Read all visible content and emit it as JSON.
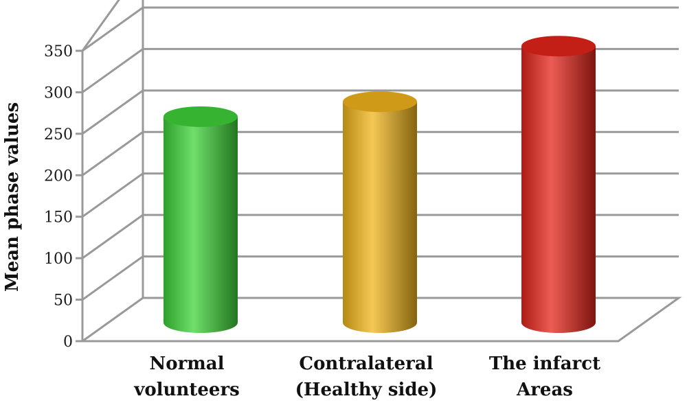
{
  "chart_data": {
    "type": "bar",
    "style": "3d-cylinder",
    "ylabel": "Mean phase values",
    "xlabel": "",
    "ylim": [
      0,
      350
    ],
    "yticks": [
      0,
      50,
      100,
      150,
      200,
      250,
      300,
      350
    ],
    "grid": true,
    "categories": [
      [
        "Normal",
        "volunteers"
      ],
      [
        "Contralateral",
        "(Healthy side)"
      ],
      [
        "The infarct",
        "Areas"
      ]
    ],
    "values": [
      240,
      258,
      325
    ],
    "colors": [
      "#3fd43a",
      "#f2b51c",
      "#e5251b"
    ]
  }
}
